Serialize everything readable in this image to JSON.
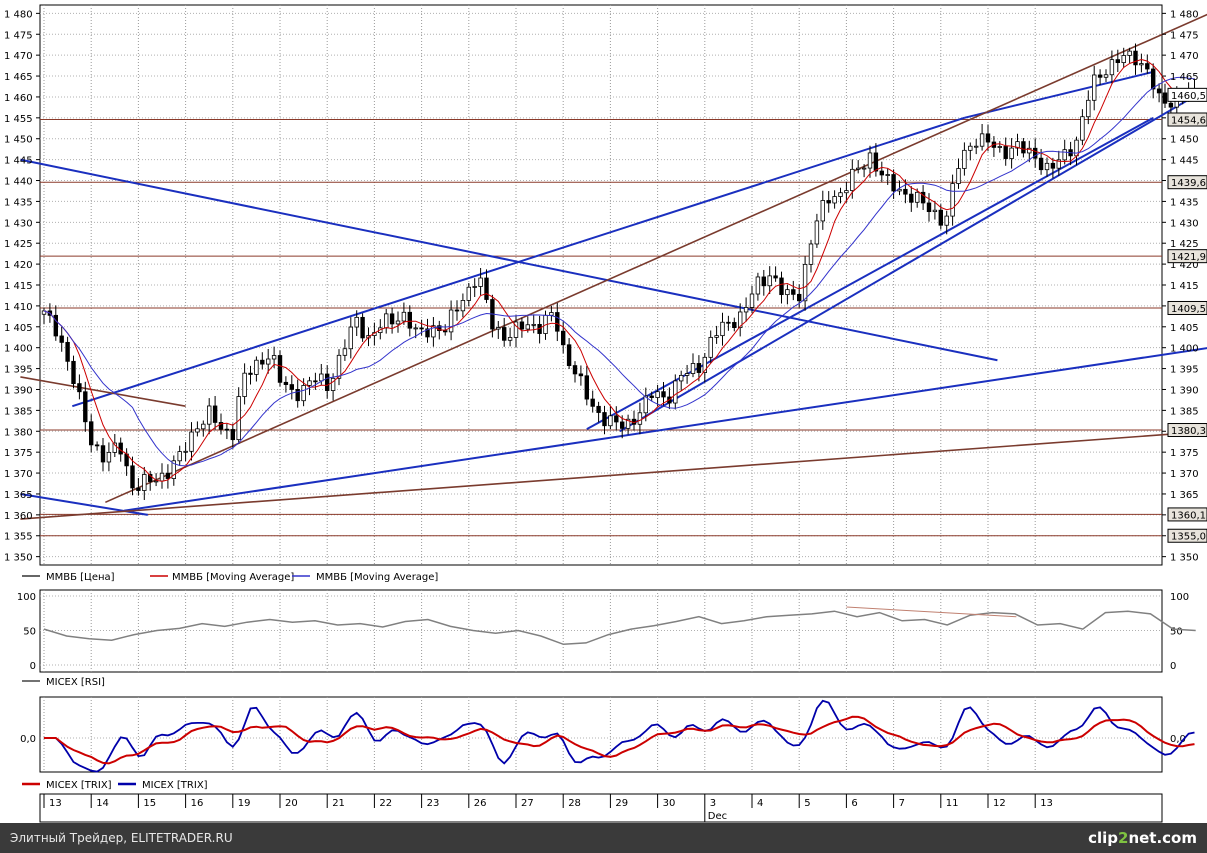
{
  "chart_data": [
    {
      "type": "candlestick",
      "instrument": "ММВБ",
      "y_ticks": [
        "1 480",
        "1 475",
        "1 470",
        "1 465",
        "1 460",
        "1 455",
        "1 450",
        "1 445",
        "1 440",
        "1 435",
        "1 430",
        "1 425",
        "1 420",
        "1 415",
        "1 410",
        "1 405",
        "1 400",
        "1 395",
        "1 390",
        "1 385",
        "1 380",
        "1 375",
        "1 370",
        "1 365",
        "1 360",
        "1 355",
        "1 350"
      ],
      "y_tick_values": [
        1480,
        1475,
        1470,
        1465,
        1460,
        1455,
        1450,
        1445,
        1440,
        1435,
        1430,
        1425,
        1420,
        1415,
        1410,
        1405,
        1400,
        1395,
        1390,
        1385,
        1380,
        1375,
        1370,
        1365,
        1360,
        1355,
        1350
      ],
      "ylim": [
        1348,
        1482
      ],
      "x_labels": [
        "13",
        "14",
        "15",
        "16",
        "19",
        "20",
        "21",
        "22",
        "23",
        "26",
        "27",
        "28",
        "29",
        "30",
        "3",
        "4",
        "5",
        "6",
        "7",
        "11",
        "12",
        "13"
      ],
      "x_month_label": "Dec",
      "legend": [
        "ММВБ [Цена]",
        "ММВБ [Moving Average]",
        "ММВБ [Moving Average]"
      ],
      "price_labels": [
        {
          "text": "1460,5",
          "value": 1460.5,
          "color": "#ffffff"
        },
        {
          "text": "1454,6",
          "value": 1454.6,
          "color": "#e8e4dc"
        },
        {
          "text": "1439,6",
          "value": 1439.6,
          "color": "#e8e4dc"
        },
        {
          "text": "1421,9",
          "value": 1421.9,
          "color": "#e8e4dc"
        },
        {
          "text": "1409,5",
          "value": 1409.5,
          "color": "#e8e4dc"
        },
        {
          "text": "1380,3",
          "value": 1380.3,
          "color": "#e8e4dc"
        },
        {
          "text": "1360,1",
          "value": 1360.1,
          "color": "#e8e4dc"
        },
        {
          "text": "1355,0",
          "value": 1355.0,
          "color": "#e8e4dc"
        }
      ],
      "horizontal_levels": [
        1454.6,
        1439.6,
        1421.9,
        1409.5,
        1380.3,
        1360.1,
        1355.0
      ],
      "close_path": [
        [
          0,
          1408
        ],
        [
          0.3,
          1404
        ],
        [
          0.6,
          1393
        ],
        [
          1.0,
          1378
        ],
        [
          1.3,
          1373
        ],
        [
          1.6,
          1377
        ],
        [
          1.9,
          1366
        ],
        [
          2.2,
          1368
        ],
        [
          2.6,
          1370
        ],
        [
          2.9,
          1374
        ],
        [
          3.2,
          1381
        ],
        [
          3.5,
          1384
        ],
        [
          3.8,
          1380
        ],
        [
          4.0,
          1380
        ],
        [
          4.2,
          1392
        ],
        [
          4.5,
          1396
        ],
        [
          4.8,
          1399
        ],
        [
          5.0,
          1392
        ],
        [
          5.3,
          1389
        ],
        [
          5.6,
          1391
        ],
        [
          5.8,
          1393
        ],
        [
          6.0,
          1391
        ],
        [
          6.3,
          1398
        ],
        [
          6.6,
          1407
        ],
        [
          6.9,
          1402
        ],
        [
          7.2,
          1406
        ],
        [
          7.6,
          1408
        ],
        [
          7.9,
          1403
        ],
        [
          8.2,
          1405
        ],
        [
          8.5,
          1404
        ],
        [
          8.8,
          1411
        ],
        [
          9.0,
          1414
        ],
        [
          9.2,
          1417
        ],
        [
          9.5,
          1406
        ],
        [
          9.8,
          1402
        ],
        [
          10.2,
          1406
        ],
        [
          10.5,
          1405
        ],
        [
          10.8,
          1408
        ],
        [
          11.0,
          1400
        ],
        [
          11.3,
          1393
        ],
        [
          11.6,
          1386
        ],
        [
          11.9,
          1383
        ],
        [
          12.2,
          1381
        ],
        [
          12.4,
          1382
        ],
        [
          12.7,
          1386
        ],
        [
          12.9,
          1389
        ],
        [
          13.2,
          1388
        ],
        [
          13.5,
          1393
        ],
        [
          13.9,
          1396
        ],
        [
          14.2,
          1403
        ],
        [
          14.5,
          1406
        ],
        [
          14.8,
          1408
        ],
        [
          15.1,
          1415
        ],
        [
          15.4,
          1418
        ],
        [
          15.7,
          1412
        ],
        [
          16.0,
          1413
        ],
        [
          16.3,
          1428
        ],
        [
          16.6,
          1436
        ],
        [
          16.9,
          1437
        ],
        [
          17.2,
          1442
        ],
        [
          17.5,
          1446
        ],
        [
          17.8,
          1440
        ],
        [
          18.1,
          1438
        ],
        [
          18.4,
          1436
        ],
        [
          18.8,
          1433
        ],
        [
          19.1,
          1430
        ],
        [
          19.4,
          1445
        ],
        [
          19.7,
          1450
        ],
        [
          20.0,
          1449
        ],
        [
          20.3,
          1447
        ],
        [
          20.6,
          1448
        ],
        [
          21.0,
          1446
        ],
        [
          21.3,
          1442
        ],
        [
          21.6,
          1446
        ],
        [
          21.9,
          1450
        ],
        [
          22.2,
          1463
        ],
        [
          22.5,
          1467
        ],
        [
          22.8,
          1469
        ],
        [
          23.1,
          1470
        ],
        [
          23.4,
          1466
        ],
        [
          23.6,
          1459
        ],
        [
          23.9,
          1459
        ],
        [
          24.1,
          1461
        ],
        [
          24.4,
          1460.5
        ]
      ]
    },
    {
      "type": "line",
      "indicator": "RSI",
      "y_ticks": [
        "100",
        "50",
        "0"
      ],
      "y_tick_values": [
        100,
        50,
        0
      ],
      "ylim": [
        0,
        100
      ],
      "legend": [
        "MICEX [RSI]"
      ],
      "values": [
        52,
        42,
        38,
        36,
        44,
        50,
        53,
        60,
        56,
        62,
        66,
        62,
        64,
        58,
        60,
        55,
        63,
        66,
        56,
        50,
        46,
        50,
        42,
        30,
        32,
        44,
        52,
        57,
        63,
        70,
        60,
        64,
        70,
        72,
        74,
        78,
        70,
        76,
        64,
        66,
        58,
        72,
        76,
        74,
        58,
        60,
        52,
        76,
        78,
        74,
        52,
        50
      ]
    },
    {
      "type": "line",
      "indicator": "TRIX",
      "y_ticks": [
        "0,0"
      ],
      "y_tick_values": [
        0
      ],
      "legend": [
        "MICEX [TRIX]",
        "MICEX [TRIX]"
      ],
      "series": [
        {
          "name": "MICEX [TRIX]",
          "color": "#cc0000"
        },
        {
          "name": "MICEX [TRIX]",
          "color": "#0000aa"
        }
      ]
    }
  ],
  "footer": {
    "text": "Элитный Трейдер, ELITETRADER.RU",
    "logo_a": "clip",
    "logo_b": "2",
    "logo_c": "net.com"
  }
}
